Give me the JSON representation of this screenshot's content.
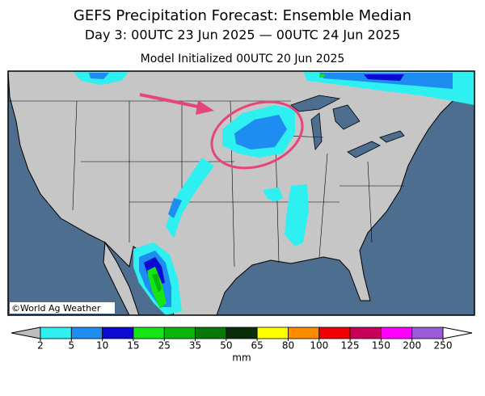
{
  "header": {
    "title": "GEFS Precipitation Forecast: Ensemble Median",
    "subtitle": "Day 3: 00UTC 23 Jun 2025 — 00UTC 24 Jun 2025",
    "initialized": "Model Initialized 00UTC 20 Jun 2025"
  },
  "map": {
    "credit": "©World Ag Weather"
  },
  "colorbar": {
    "ticks": [
      2,
      5,
      10,
      15,
      25,
      35,
      50,
      65,
      80,
      100,
      125,
      150,
      200,
      250
    ],
    "colors": [
      "#2ef0f0",
      "#1e8cf0",
      "#0a0ad2",
      "#14e614",
      "#0ab40a",
      "#087808",
      "#0a2d0a",
      "#ffff00",
      "#ff8c00",
      "#f00000",
      "#c8005a",
      "#ff00ff",
      "#9b5ad7"
    ],
    "under_color": "#bebebe",
    "over_color": "#ffffff",
    "unit": "mm"
  }
}
